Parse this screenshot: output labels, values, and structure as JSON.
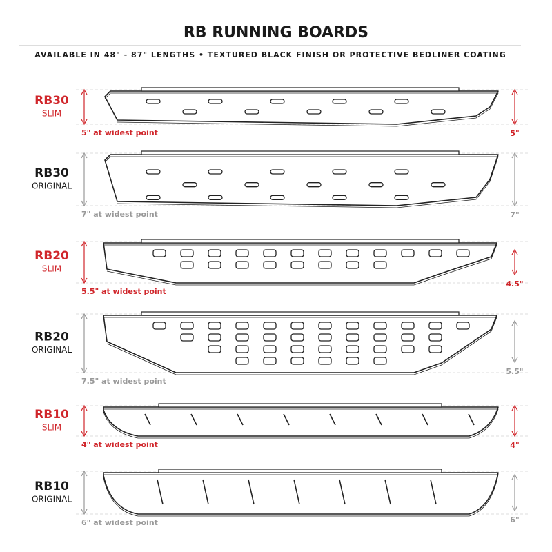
{
  "header": {
    "title": "RB RUNNING BOARDS",
    "subtitle": "AVAILABLE IN 48\" - 87\" LENGTHS   •   TEXTURED BLACK FINISH OR PROTECTIVE BEDLINER COATING"
  },
  "boards": [
    {
      "model": "RB30",
      "variant": "SLIM",
      "widest": "5\" at widest point",
      "right_label": "5\"",
      "color": "#d0262b",
      "label_color": "#d0262b"
    },
    {
      "model": "RB30",
      "variant": "ORIGINAL",
      "widest": "7\" at widest point",
      "right_label": "7\"",
      "color": "#1a1a1a",
      "label_color": "#999999"
    },
    {
      "model": "RB20",
      "variant": "SLIM",
      "widest": "5.5\" at widest point",
      "right_label": "4.5\"",
      "color": "#d0262b",
      "label_color": "#d0262b"
    },
    {
      "model": "RB20",
      "variant": "ORIGINAL",
      "widest": "7.5\" at widest point",
      "right_label": "5.5\"",
      "color": "#1a1a1a",
      "label_color": "#999999"
    },
    {
      "model": "RB10",
      "variant": "SLIM",
      "widest": "4\" at widest point",
      "right_label": "4\"",
      "color": "#d0262b",
      "label_color": "#d0262b"
    },
    {
      "model": "RB10",
      "variant": "ORIGINAL",
      "widest": "6\" at widest point",
      "right_label": "6\"",
      "color": "#1a1a1a",
      "label_color": "#999999"
    }
  ]
}
